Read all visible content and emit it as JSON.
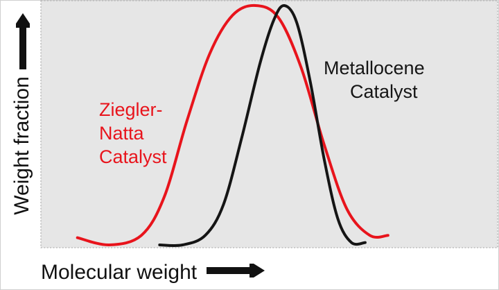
{
  "chart_data": {
    "type": "line",
    "title": "",
    "xlabel": "Molecular weight",
    "ylabel": "Weight fraction",
    "axis_ticks": "none",
    "grid": false,
    "colors": {
      "plot_background": "#e6e6e6",
      "frame": "#b5b5b5",
      "axis": "#9a9a9a",
      "text": "#111111"
    },
    "series": [
      {
        "name": "Ziegler-Natta Catalyst",
        "label_lines": [
          "Ziegler-",
          "Natta",
          "Catalyst"
        ],
        "color": "#e8141c",
        "points": [
          [
            0.08,
            0.03
          ],
          [
            0.15,
            0.0
          ],
          [
            0.22,
            0.04
          ],
          [
            0.27,
            0.2
          ],
          [
            0.32,
            0.52
          ],
          [
            0.37,
            0.8
          ],
          [
            0.42,
            0.96
          ],
          [
            0.47,
            1.0
          ],
          [
            0.52,
            0.95
          ],
          [
            0.57,
            0.74
          ],
          [
            0.62,
            0.42
          ],
          [
            0.67,
            0.15
          ],
          [
            0.72,
            0.04
          ],
          [
            0.76,
            0.04
          ]
        ]
      },
      {
        "name": "Metallocene Catalyst",
        "label_lines": [
          "Metallocene",
          "Catalyst"
        ],
        "color": "#151515",
        "points": [
          [
            0.26,
            0.0
          ],
          [
            0.31,
            0.0
          ],
          [
            0.36,
            0.04
          ],
          [
            0.4,
            0.17
          ],
          [
            0.44,
            0.45
          ],
          [
            0.48,
            0.76
          ],
          [
            0.51,
            0.94
          ],
          [
            0.533,
            1.0
          ],
          [
            0.56,
            0.93
          ],
          [
            0.59,
            0.68
          ],
          [
            0.62,
            0.36
          ],
          [
            0.65,
            0.11
          ],
          [
            0.68,
            0.01
          ],
          [
            0.71,
            0.01
          ]
        ]
      }
    ]
  }
}
